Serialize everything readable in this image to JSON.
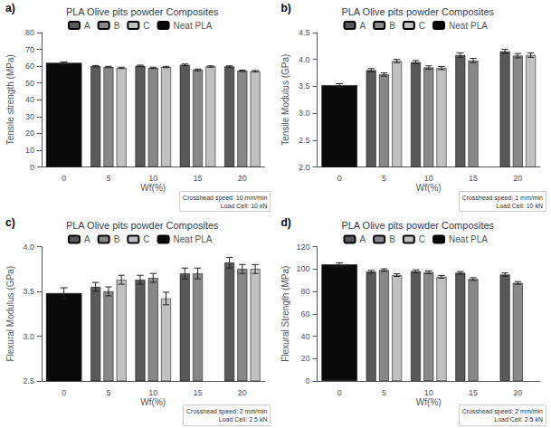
{
  "chart_data": [
    {
      "type": "bar",
      "title": "PLA Olive pits powder Composites",
      "xlabel": "Wf(%)",
      "ylabel": "Tensile strength (MPa)",
      "panel_label": "a)",
      "note": "Crosshead speed: 10 mm/min\nLoad Cell: 10 kN",
      "categories": [
        0,
        5,
        10,
        15,
        20
      ],
      "series": [
        {
          "name": "A",
          "color": "#595959",
          "values": [
            null,
            60.0,
            60.2,
            60.8,
            59.8
          ],
          "errors": [
            null,
            0.4,
            0.4,
            0.5,
            0.4
          ]
        },
        {
          "name": "B",
          "color": "#888888",
          "values": [
            null,
            59.5,
            59.0,
            57.8,
            57.2
          ],
          "errors": [
            null,
            0.4,
            0.4,
            0.5,
            0.4
          ]
        },
        {
          "name": "C",
          "color": "#c0c0c0",
          "values": [
            null,
            59.0,
            59.5,
            59.8,
            57.0
          ],
          "errors": [
            null,
            0.4,
            0.4,
            0.4,
            0.4
          ]
        },
        {
          "name": "Neat PLA",
          "color": "#0a0a0a",
          "values": [
            62.0,
            null,
            null,
            null,
            null
          ],
          "errors": [
            0.5,
            null,
            null,
            null,
            null
          ]
        }
      ],
      "ylim": [
        0,
        80
      ],
      "yticks": [
        0,
        10,
        20,
        30,
        40,
        50,
        60,
        70,
        80
      ],
      "grid": false,
      "legend": "top"
    },
    {
      "type": "bar",
      "title": "PLA Olive pits powder Composites",
      "xlabel": "Wf(%)",
      "ylabel": "Tensile Modulus (GPa)",
      "panel_label": "b)",
      "note": "Crosshead speed: 1 mm/min\nLoad Cell: 10 kN",
      "categories": [
        0,
        5,
        10,
        15,
        20
      ],
      "series": [
        {
          "name": "A",
          "color": "#595959",
          "values": [
            null,
            3.8,
            3.95,
            4.08,
            4.15
          ],
          "errors": [
            null,
            0.03,
            0.03,
            0.04,
            0.04
          ]
        },
        {
          "name": "B",
          "color": "#888888",
          "values": [
            null,
            3.72,
            3.85,
            3.98,
            4.07
          ],
          "errors": [
            null,
            0.03,
            0.03,
            0.04,
            0.04
          ]
        },
        {
          "name": "C",
          "color": "#c0c0c0",
          "values": [
            null,
            3.97,
            3.84,
            null,
            4.08
          ],
          "errors": [
            null,
            0.03,
            0.03,
            null,
            0.04
          ]
        },
        {
          "name": "Neat PLA",
          "color": "#0a0a0a",
          "values": [
            3.52,
            null,
            null,
            null,
            null
          ],
          "errors": [
            0.03,
            null,
            null,
            null,
            null
          ]
        }
      ],
      "ylim": [
        2.0,
        4.5
      ],
      "yticks": [
        {
          "value": 2.0,
          "label": "2.0"
        },
        {
          "value": 2.5,
          "label": "2.5"
        },
        {
          "value": 3.0,
          "label": "3.0"
        },
        {
          "value": 3.5,
          "label": "3.5"
        },
        {
          "value": 4.0,
          "label": "4.0"
        },
        {
          "value": 4.5,
          "label": "4.5"
        }
      ],
      "grid": false,
      "legend": "top"
    },
    {
      "type": "bar",
      "title": "PLA Olive pits powder Composites",
      "xlabel": "Wf(%)",
      "ylabel": "Flexural Modulus (GPa)",
      "panel_label": "c)",
      "note": "Crosshead speed: 2 mm/min\nLoad Cell: 2.5 kN",
      "categories": [
        0,
        5,
        10,
        15,
        20
      ],
      "series": [
        {
          "name": "A",
          "color": "#595959",
          "values": [
            null,
            3.55,
            3.63,
            3.7,
            3.82
          ],
          "errors": [
            null,
            0.05,
            0.05,
            0.06,
            0.06
          ]
        },
        {
          "name": "B",
          "color": "#888888",
          "values": [
            null,
            3.5,
            3.65,
            3.7,
            3.75
          ],
          "errors": [
            null,
            0.05,
            0.05,
            0.06,
            0.05
          ]
        },
        {
          "name": "C",
          "color": "#c0c0c0",
          "values": [
            null,
            3.63,
            3.42,
            null,
            3.75
          ],
          "errors": [
            null,
            0.05,
            0.07,
            null,
            0.05
          ]
        },
        {
          "name": "Neat PLA",
          "color": "#0a0a0a",
          "values": [
            3.48,
            null,
            null,
            null,
            null
          ],
          "errors": [
            0.06,
            null,
            null,
            null,
            null
          ]
        }
      ],
      "ylim": [
        2.5,
        4.0
      ],
      "yticks": [
        {
          "value": 2.5,
          "label": "2.5"
        },
        {
          "value": 3.0,
          "label": "3.0"
        },
        {
          "value": 3.5,
          "label": "3.5"
        },
        {
          "value": 4.0,
          "label": "4.0"
        }
      ],
      "grid": false,
      "legend": "top"
    },
    {
      "type": "bar",
      "title": "PLA Olive pits powder Composites",
      "xlabel": "Wf(%)",
      "ylabel": "Flexural Strength (MPa)",
      "panel_label": "d)",
      "note": "Crosshead speed: 2 mm/min\nLoad Cell: 2.5 kN",
      "categories": [
        0,
        5,
        10,
        15,
        20
      ],
      "series": [
        {
          "name": "A",
          "color": "#595959",
          "values": [
            null,
            97.5,
            98.0,
            96.5,
            95.0
          ],
          "errors": [
            null,
            1.2,
            1.2,
            1.2,
            1.5
          ]
        },
        {
          "name": "B",
          "color": "#888888",
          "values": [
            null,
            99.0,
            97.0,
            91.0,
            87.5
          ],
          "errors": [
            null,
            1.2,
            1.2,
            1.2,
            1.2
          ]
        },
        {
          "name": "C",
          "color": "#c0c0c0",
          "values": [
            null,
            94.5,
            93.0,
            null,
            null
          ],
          "errors": [
            null,
            1.2,
            1.2,
            null,
            null
          ]
        },
        {
          "name": "Neat PLA",
          "color": "#0a0a0a",
          "values": [
            104.0,
            null,
            null,
            null,
            null
          ],
          "errors": [
            1.5,
            null,
            null,
            null,
            null
          ]
        }
      ],
      "ylim": [
        0,
        120
      ],
      "yticks": [
        0,
        20,
        40,
        60,
        80,
        100,
        120
      ],
      "grid": false,
      "legend": "top"
    }
  ]
}
